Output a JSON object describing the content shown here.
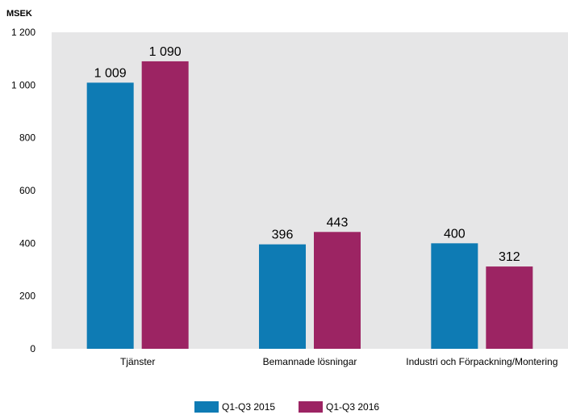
{
  "chart_data": {
    "type": "bar",
    "unit_label": "MSEK",
    "categories": [
      "Tjänster",
      "Bemannade lösningar",
      "Industri och Förpackning/Montering"
    ],
    "series": [
      {
        "name": "Q1-Q3 2015",
        "color": "#0e7bb4",
        "values": [
          1009,
          396,
          400
        ],
        "labels": [
          "1 009",
          "396",
          "400"
        ]
      },
      {
        "name": "Q1-Q3 2016",
        "color": "#9c2463",
        "values": [
          1090,
          443,
          312
        ],
        "labels": [
          "1 090",
          "443",
          "312"
        ]
      }
    ],
    "ylim": [
      0,
      1200
    ],
    "yticks": [
      0,
      200,
      400,
      600,
      800,
      1000,
      1200
    ],
    "ytick_labels": [
      "0",
      "200",
      "400",
      "600",
      "800",
      "1 000",
      "1 200"
    ],
    "xlabel": "",
    "ylabel": "",
    "grid": false,
    "plot_background": "#e6e6e7",
    "legend_position": "bottom-center"
  }
}
